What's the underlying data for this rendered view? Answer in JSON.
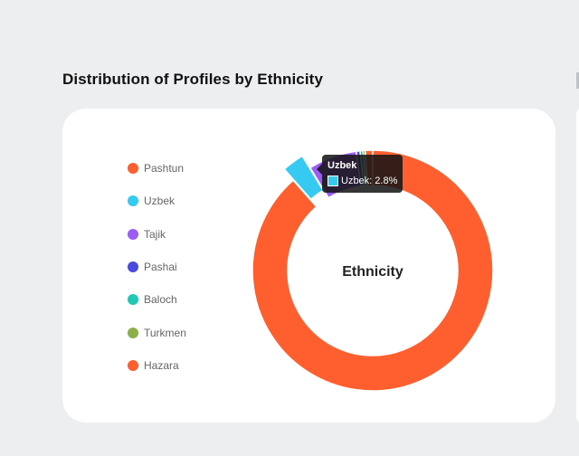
{
  "page": {
    "section_title": "Distribution of Profiles by Ethnicity"
  },
  "chart_data": {
    "type": "doughnut",
    "title": "",
    "center_label": "Ethnicity",
    "legend_position": "left",
    "unit": "%",
    "categories": [
      "Pashtun",
      "Uzbek",
      "Tajik",
      "Pashai",
      "Baloch",
      "Turkmen",
      "Hazara"
    ],
    "values": [
      88.5,
      2.8,
      6.5,
      0.5,
      0.4,
      0.3,
      1.0
    ],
    "colors": [
      "#ff5f2e",
      "#36c9f2",
      "#9b5cf6",
      "#4a4ae0",
      "#1fc8b4",
      "#8bb04a",
      "#ff5f2e"
    ],
    "hovered_index": 1
  },
  "tooltip": {
    "title": "Uzbek",
    "label": "Uzbek: 2.8%"
  }
}
